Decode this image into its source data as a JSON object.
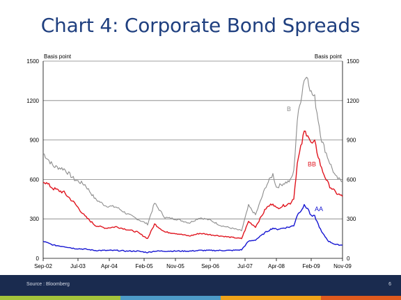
{
  "slide": {
    "title": "Chart 4: Corporate Bond Spreads",
    "source": "Source : Bloomberg",
    "page_number": "6"
  },
  "colors": {
    "title": "#1f3f7f",
    "footer": "#1a2b4f",
    "stripe": [
      "#a3c33b",
      "#4d9bc8",
      "#f0a319",
      "#e05a1e"
    ]
  },
  "chart_data": {
    "type": "line",
    "title": "",
    "ylabel_left": "Basis point",
    "ylabel_right": "Basis point",
    "ylim": [
      0,
      1500
    ],
    "yticks": [
      0,
      300,
      600,
      900,
      1200,
      1500
    ],
    "xticks": [
      "Sep-02",
      "Jul-03",
      "Apr-04",
      "Feb-05",
      "Nov-05",
      "Sep-06",
      "Jul-07",
      "Apr-08",
      "Feb-09",
      "Nov-09"
    ],
    "xticks_dates": [
      "2002-09",
      "2003-07",
      "2004-04",
      "2005-02",
      "2005-11",
      "2006-09",
      "2007-07",
      "2008-04",
      "2009-02",
      "2009-11"
    ],
    "xlim": [
      "2002-09",
      "2009-11"
    ],
    "grid": "horizontal",
    "series": [
      {
        "name": "B",
        "color": "#8c8c8c",
        "points": [
          [
            "2002-09",
            800
          ],
          [
            "2002-12",
            700
          ],
          [
            "2003-03",
            680
          ],
          [
            "2003-06",
            600
          ],
          [
            "2003-09",
            560
          ],
          [
            "2003-12",
            450
          ],
          [
            "2004-03",
            400
          ],
          [
            "2004-06",
            390
          ],
          [
            "2004-09",
            340
          ],
          [
            "2004-12",
            300
          ],
          [
            "2005-03",
            260
          ],
          [
            "2005-05",
            420
          ],
          [
            "2005-08",
            310
          ],
          [
            "2005-11",
            300
          ],
          [
            "2006-03",
            270
          ],
          [
            "2006-06",
            310
          ],
          [
            "2006-09",
            290
          ],
          [
            "2006-12",
            250
          ],
          [
            "2007-03",
            230
          ],
          [
            "2007-06",
            210
          ],
          [
            "2007-08",
            400
          ],
          [
            "2007-10",
            330
          ],
          [
            "2008-01",
            550
          ],
          [
            "2008-03",
            640
          ],
          [
            "2008-04",
            540
          ],
          [
            "2008-06",
            570
          ],
          [
            "2008-08",
            590
          ],
          [
            "2008-09",
            660
          ],
          [
            "2008-10",
            1050
          ],
          [
            "2008-12",
            1370
          ],
          [
            "2009-01",
            1380
          ],
          [
            "2009-02",
            1260
          ],
          [
            "2009-03",
            1220
          ],
          [
            "2009-05",
            900
          ],
          [
            "2009-07",
            750
          ],
          [
            "2009-09",
            620
          ],
          [
            "2009-11",
            580
          ]
        ]
      },
      {
        "name": "BB",
        "color": "#e0141e",
        "points": [
          [
            "2002-09",
            590
          ],
          [
            "2002-12",
            530
          ],
          [
            "2003-03",
            500
          ],
          [
            "2003-06",
            420
          ],
          [
            "2003-09",
            320
          ],
          [
            "2003-12",
            250
          ],
          [
            "2004-03",
            230
          ],
          [
            "2004-06",
            240
          ],
          [
            "2004-09",
            220
          ],
          [
            "2004-12",
            200
          ],
          [
            "2005-03",
            150
          ],
          [
            "2005-05",
            260
          ],
          [
            "2005-08",
            200
          ],
          [
            "2005-11",
            190
          ],
          [
            "2006-03",
            170
          ],
          [
            "2006-06",
            190
          ],
          [
            "2006-09",
            180
          ],
          [
            "2006-12",
            170
          ],
          [
            "2007-03",
            160
          ],
          [
            "2007-06",
            150
          ],
          [
            "2007-08",
            280
          ],
          [
            "2007-10",
            240
          ],
          [
            "2008-01",
            380
          ],
          [
            "2008-03",
            420
          ],
          [
            "2008-04",
            380
          ],
          [
            "2008-06",
            400
          ],
          [
            "2008-08",
            420
          ],
          [
            "2008-09",
            460
          ],
          [
            "2008-10",
            720
          ],
          [
            "2008-12",
            960
          ],
          [
            "2009-01",
            950
          ],
          [
            "2009-02",
            870
          ],
          [
            "2009-03",
            880
          ],
          [
            "2009-05",
            680
          ],
          [
            "2009-07",
            560
          ],
          [
            "2009-09",
            500
          ],
          [
            "2009-11",
            470
          ]
        ]
      },
      {
        "name": "AA",
        "color": "#1414d2",
        "points": [
          [
            "2002-09",
            130
          ],
          [
            "2002-12",
            100
          ],
          [
            "2003-03",
            90
          ],
          [
            "2003-06",
            75
          ],
          [
            "2003-09",
            70
          ],
          [
            "2003-12",
            60
          ],
          [
            "2004-03",
            60
          ],
          [
            "2004-06",
            60
          ],
          [
            "2004-09",
            55
          ],
          [
            "2004-12",
            55
          ],
          [
            "2005-03",
            45
          ],
          [
            "2005-05",
            55
          ],
          [
            "2005-08",
            55
          ],
          [
            "2005-11",
            55
          ],
          [
            "2006-03",
            55
          ],
          [
            "2006-06",
            60
          ],
          [
            "2006-09",
            60
          ],
          [
            "2006-12",
            60
          ],
          [
            "2007-03",
            60
          ],
          [
            "2007-06",
            65
          ],
          [
            "2007-08",
            130
          ],
          [
            "2007-10",
            140
          ],
          [
            "2008-01",
            200
          ],
          [
            "2008-03",
            230
          ],
          [
            "2008-04",
            220
          ],
          [
            "2008-06",
            230
          ],
          [
            "2008-08",
            240
          ],
          [
            "2008-09",
            250
          ],
          [
            "2008-10",
            330
          ],
          [
            "2008-12",
            400
          ],
          [
            "2009-01",
            380
          ],
          [
            "2009-02",
            320
          ],
          [
            "2009-03",
            320
          ],
          [
            "2009-05",
            200
          ],
          [
            "2009-07",
            130
          ],
          [
            "2009-09",
            105
          ],
          [
            "2009-11",
            100
          ]
        ]
      }
    ],
    "annotations": [
      {
        "text": "B",
        "series": "B",
        "at": [
          "2008-07",
          1120
        ]
      },
      {
        "text": "BB",
        "series": "BB",
        "at": [
          "2009-01",
          700
        ]
      },
      {
        "text": "AA",
        "series": "AA",
        "at": [
          "2009-03",
          360
        ]
      }
    ]
  }
}
